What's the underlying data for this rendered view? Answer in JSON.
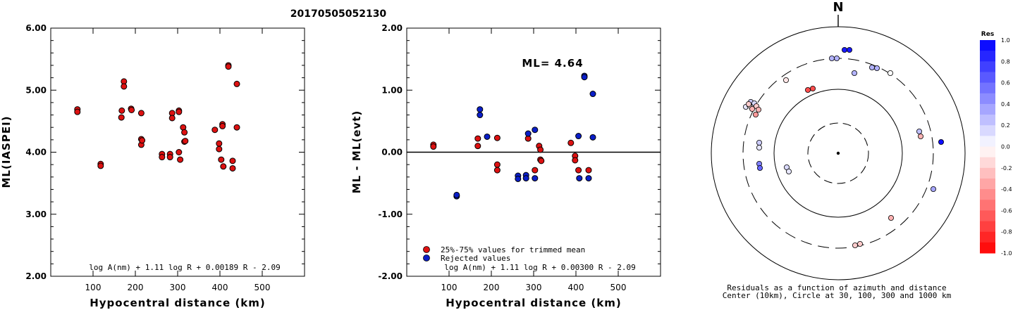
{
  "title": "20170505052130",
  "chart_data": [
    {
      "type": "scatter",
      "panel": "left",
      "xlabel": "Hypocentral distance (km)",
      "ylabel": "ML(IASPEI)",
      "xlim": [
        0,
        600
      ],
      "ylim": [
        2.0,
        6.0
      ],
      "x_ticks": [
        "100",
        "200",
        "300",
        "400",
        "500"
      ],
      "y_ticks": [
        "2.00",
        "3.00",
        "4.00",
        "5.00",
        "6.00"
      ],
      "formula": "log A(nm) + 1.11 log R + 0.00189 R - 2.09",
      "points": [
        [
          63,
          4.69
        ],
        [
          63,
          4.65
        ],
        [
          118,
          3.81
        ],
        [
          118,
          3.78
        ],
        [
          168,
          4.67
        ],
        [
          167,
          4.56
        ],
        [
          173,
          5.14
        ],
        [
          173,
          5.06
        ],
        [
          190,
          4.7
        ],
        [
          191,
          4.68
        ],
        [
          214,
          4.63
        ],
        [
          214,
          4.21
        ],
        [
          214,
          4.12
        ],
        [
          216,
          4.19
        ],
        [
          263,
          3.97
        ],
        [
          263,
          3.92
        ],
        [
          282,
          3.97
        ],
        [
          282,
          3.92
        ],
        [
          287,
          4.63
        ],
        [
          287,
          4.55
        ],
        [
          303,
          4.67
        ],
        [
          303,
          4.65
        ],
        [
          303,
          4.0
        ],
        [
          306,
          3.88
        ],
        [
          313,
          4.4
        ],
        [
          316,
          4.32
        ],
        [
          316,
          4.17
        ],
        [
          318,
          4.18
        ],
        [
          388,
          4.36
        ],
        [
          398,
          4.14
        ],
        [
          398,
          4.05
        ],
        [
          403,
          3.88
        ],
        [
          406,
          4.45
        ],
        [
          406,
          4.42
        ],
        [
          408,
          3.77
        ],
        [
          420,
          5.4
        ],
        [
          420,
          5.38
        ],
        [
          430,
          3.86
        ],
        [
          430,
          3.74
        ],
        [
          440,
          5.1
        ],
        [
          440,
          4.4
        ]
      ]
    },
    {
      "type": "scatter",
      "panel": "middle",
      "xlabel": "Hypocentral distance (km)",
      "ylabel": "ML - ML(evt)",
      "xlim": [
        0,
        600
      ],
      "ylim": [
        -2.0,
        2.0
      ],
      "x_ticks": [
        "100",
        "200",
        "300",
        "400",
        "500"
      ],
      "y_ticks": [
        "-2.00",
        "-1.00",
        "0.00",
        "1.00",
        "2.00"
      ],
      "annotation": "ML= 4.64",
      "formula": "log A(nm) + 1.11 log R + 0.00300 R - 2.09",
      "legend": [
        "25%-75% values for trimmed mean",
        "Rejected values"
      ],
      "series": [
        {
          "name": "25%-75% values for trimmed mean",
          "color": "#dd1111",
          "points": [
            [
              63,
              0.12
            ],
            [
              63,
              0.09
            ],
            [
              168,
              0.22
            ],
            [
              168,
              0.1
            ],
            [
              214,
              0.23
            ],
            [
              214,
              -0.2
            ],
            [
              214,
              -0.29
            ],
            [
              287,
              0.22
            ],
            [
              303,
              -0.29
            ],
            [
              313,
              0.1
            ],
            [
              316,
              0.04
            ],
            [
              316,
              -0.12
            ],
            [
              318,
              -0.14
            ],
            [
              388,
              0.15
            ],
            [
              398,
              -0.06
            ],
            [
              398,
              -0.13
            ],
            [
              406,
              -0.29
            ],
            [
              430,
              -0.29
            ]
          ]
        },
        {
          "name": "Rejected values",
          "color": "#0a1ec8",
          "points": [
            [
              118,
              -0.71
            ],
            [
              118,
              -0.69
            ],
            [
              173,
              0.69
            ],
            [
              173,
              0.6
            ],
            [
              190,
              0.25
            ],
            [
              263,
              -0.38
            ],
            [
              263,
              -0.43
            ],
            [
              282,
              -0.37
            ],
            [
              282,
              -0.42
            ],
            [
              287,
              0.3
            ],
            [
              303,
              0.36
            ],
            [
              303,
              -0.42
            ],
            [
              406,
              0.26
            ],
            [
              408,
              -0.42
            ],
            [
              420,
              1.23
            ],
            [
              420,
              1.21
            ],
            [
              430,
              -0.42
            ],
            [
              440,
              0.94
            ],
            [
              440,
              0.24
            ]
          ]
        }
      ]
    },
    {
      "type": "polar-scatter",
      "panel": "right",
      "north_label": "N",
      "caption_line1": "Residuals as a function of azimuth and distance",
      "caption_line2": "Center (10km), Circle at 30, 100, 300 and 1000 km",
      "rings_km": [
        30,
        100,
        300,
        1000
      ],
      "colorbar_title": "Res",
      "colorbar_ticks": [
        "1.0",
        "0.8",
        "0.6",
        "0.4",
        "0.2",
        "0.0",
        "-0.2",
        "-0.4",
        "-0.6",
        "-0.8",
        "-1.0"
      ],
      "stations": [
        [
          1198,
          71,
          0.9
        ],
        [
          1205,
          71,
          0.9
        ],
        [
          1180,
          83,
          0.3
        ],
        [
          1187,
          83,
          0.3
        ],
        [
          1237,
          96,
          0.3
        ],
        [
          1244,
          97,
          0.3
        ],
        [
          1212,
          104,
          0.3
        ],
        [
          1263,
          104,
          0.0
        ],
        [
          1115,
          114,
          -0.1
        ],
        [
          1146,
          128,
          -0.7
        ],
        [
          1153,
          126,
          -0.7
        ],
        [
          1058,
          152,
          0.1
        ],
        [
          1063,
          150,
          -0.1
        ],
        [
          1065,
          145,
          0.2
        ],
        [
          1070,
          147,
          0.15
        ],
        [
          1073,
          151,
          -0.2
        ],
        [
          1076,
          156,
          -0.3
        ],
        [
          1072,
          163,
          -0.4
        ],
        [
          1067,
          155,
          -0.3
        ],
        [
          1062,
          148,
          -0.2
        ],
        [
          1304,
          187,
          0.25
        ],
        [
          1306,
          194,
          -0.3
        ],
        [
          1335,
          202,
          0.95
        ],
        [
          1077,
          203,
          0.2
        ],
        [
          1077,
          210,
          0.1
        ],
        [
          1077,
          233,
          0.5
        ],
        [
          1078,
          239,
          0.6
        ],
        [
          1116,
          238,
          0.15
        ],
        [
          1119,
          244,
          0.1
        ],
        [
          1324,
          269,
          0.35
        ],
        [
          1264,
          310,
          -0.3
        ],
        [
          1213,
          349,
          -0.2
        ],
        [
          1220,
          347,
          -0.2
        ]
      ]
    }
  ]
}
